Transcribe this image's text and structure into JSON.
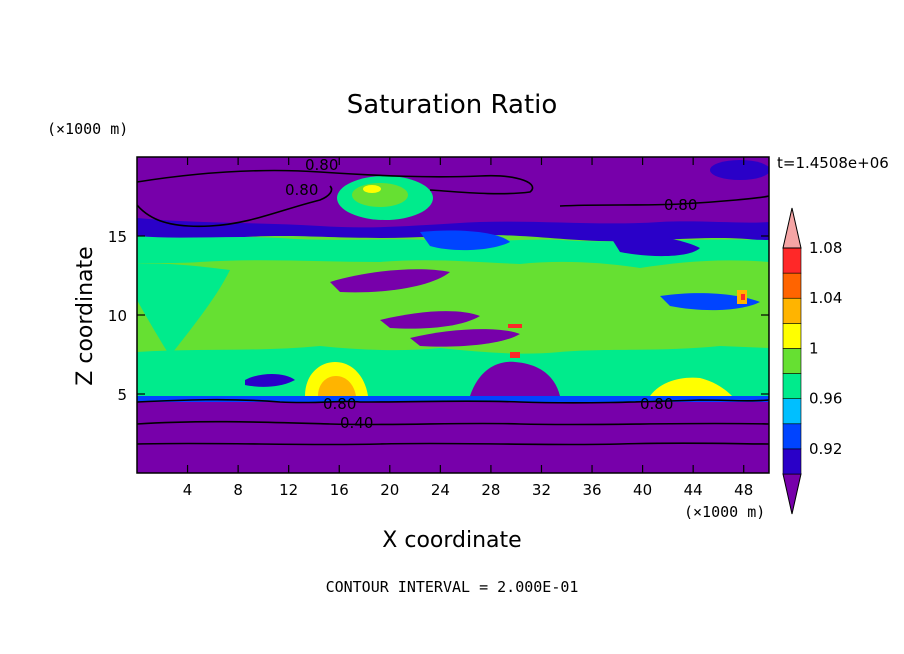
{
  "chart_data": {
    "type": "heatmap",
    "title": "Saturation Ratio",
    "xlabel": "X coordinate",
    "ylabel": "Z coordinate",
    "x_unit": "(×1000 m)",
    "y_unit": "(×1000 m)",
    "time_label": "t=1.4508e+06",
    "footer": "CONTOUR INTERVAL = 2.000E-01",
    "xlim": [
      0,
      50
    ],
    "ylim": [
      0,
      20
    ],
    "x_ticks": [
      "4",
      "8",
      "12",
      "16",
      "20",
      "24",
      "28",
      "32",
      "36",
      "40",
      "44",
      "48"
    ],
    "y_ticks": [
      "5",
      "10",
      "15"
    ],
    "colorbar": {
      "labels": [
        "0.92",
        "0.96",
        "1",
        "1.04",
        "1.08"
      ],
      "levels": [
        0.9,
        0.92,
        0.94,
        0.96,
        0.98,
        1.0,
        1.02,
        1.04,
        1.06,
        1.08,
        1.1
      ],
      "colors": [
        "#7700aa",
        "#2a00c8",
        "#0044ff",
        "#00bfff",
        "#00eb8c",
        "#66e032",
        "#ffff00",
        "#ffb400",
        "#ff6400",
        "#ff2828",
        "#f5a5a5"
      ]
    },
    "contour_labels": [
      "0.80",
      "0.80",
      "0.80",
      "0.80",
      "0.80",
      "0.40"
    ],
    "contour_interval": 0.2
  }
}
